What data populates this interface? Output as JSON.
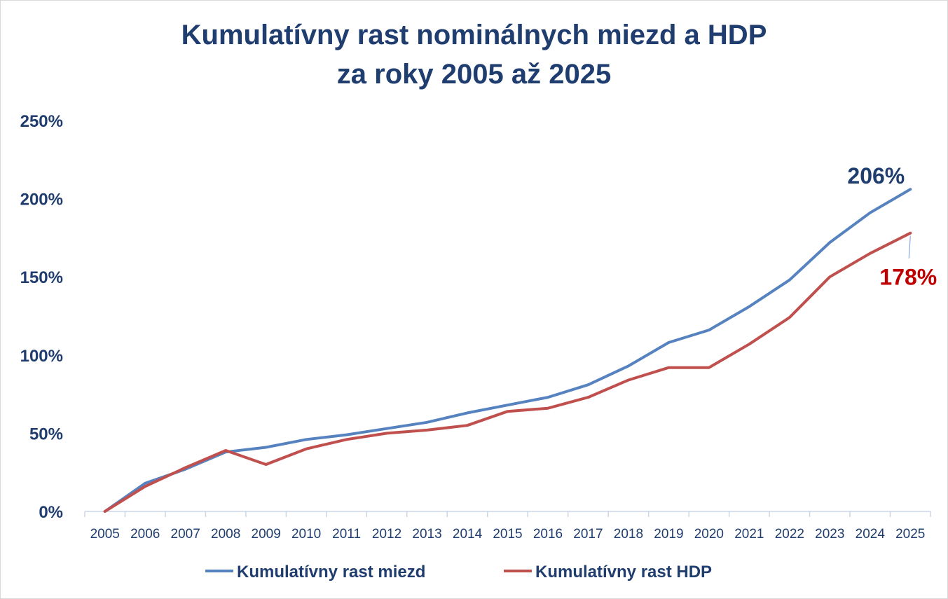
{
  "chart_data": {
    "type": "line",
    "title_line1": "Kumulatívny rast nominálnych miezd a HDP",
    "title_line2": "za roky 2005 až 2025",
    "x": [
      "2005",
      "2006",
      "2007",
      "2008",
      "2009",
      "2010",
      "2011",
      "2012",
      "2013",
      "2014",
      "2015",
      "2016",
      "2017",
      "2018",
      "2019",
      "2020",
      "2021",
      "2022",
      "2023",
      "2024",
      "2025"
    ],
    "ylim": [
      0,
      250
    ],
    "yticks": [
      0,
      50,
      100,
      150,
      200,
      250
    ],
    "ytick_labels": [
      "0%",
      "50%",
      "100%",
      "150%",
      "200%",
      "250%"
    ],
    "series": [
      {
        "name": "Kumulatívny rast miezd",
        "color": "#5683c0",
        "values": [
          0,
          18,
          27,
          38,
          41,
          46,
          49,
          53,
          57,
          63,
          68,
          73,
          81,
          93,
          108,
          116,
          131,
          148,
          172,
          191,
          206
        ],
        "end_label": "206%",
        "end_label_color": "#1f3d6e"
      },
      {
        "name": "Kumulatívny rast HDP",
        "color": "#c0504d",
        "values": [
          0,
          16,
          28,
          39,
          30,
          40,
          46,
          50,
          52,
          55,
          64,
          66,
          73,
          84,
          92,
          92,
          107,
          124,
          150,
          165,
          178
        ],
        "end_label": "178%",
        "end_label_color": "#c00000"
      }
    ],
    "grid": false,
    "legend_position": "bottom"
  }
}
